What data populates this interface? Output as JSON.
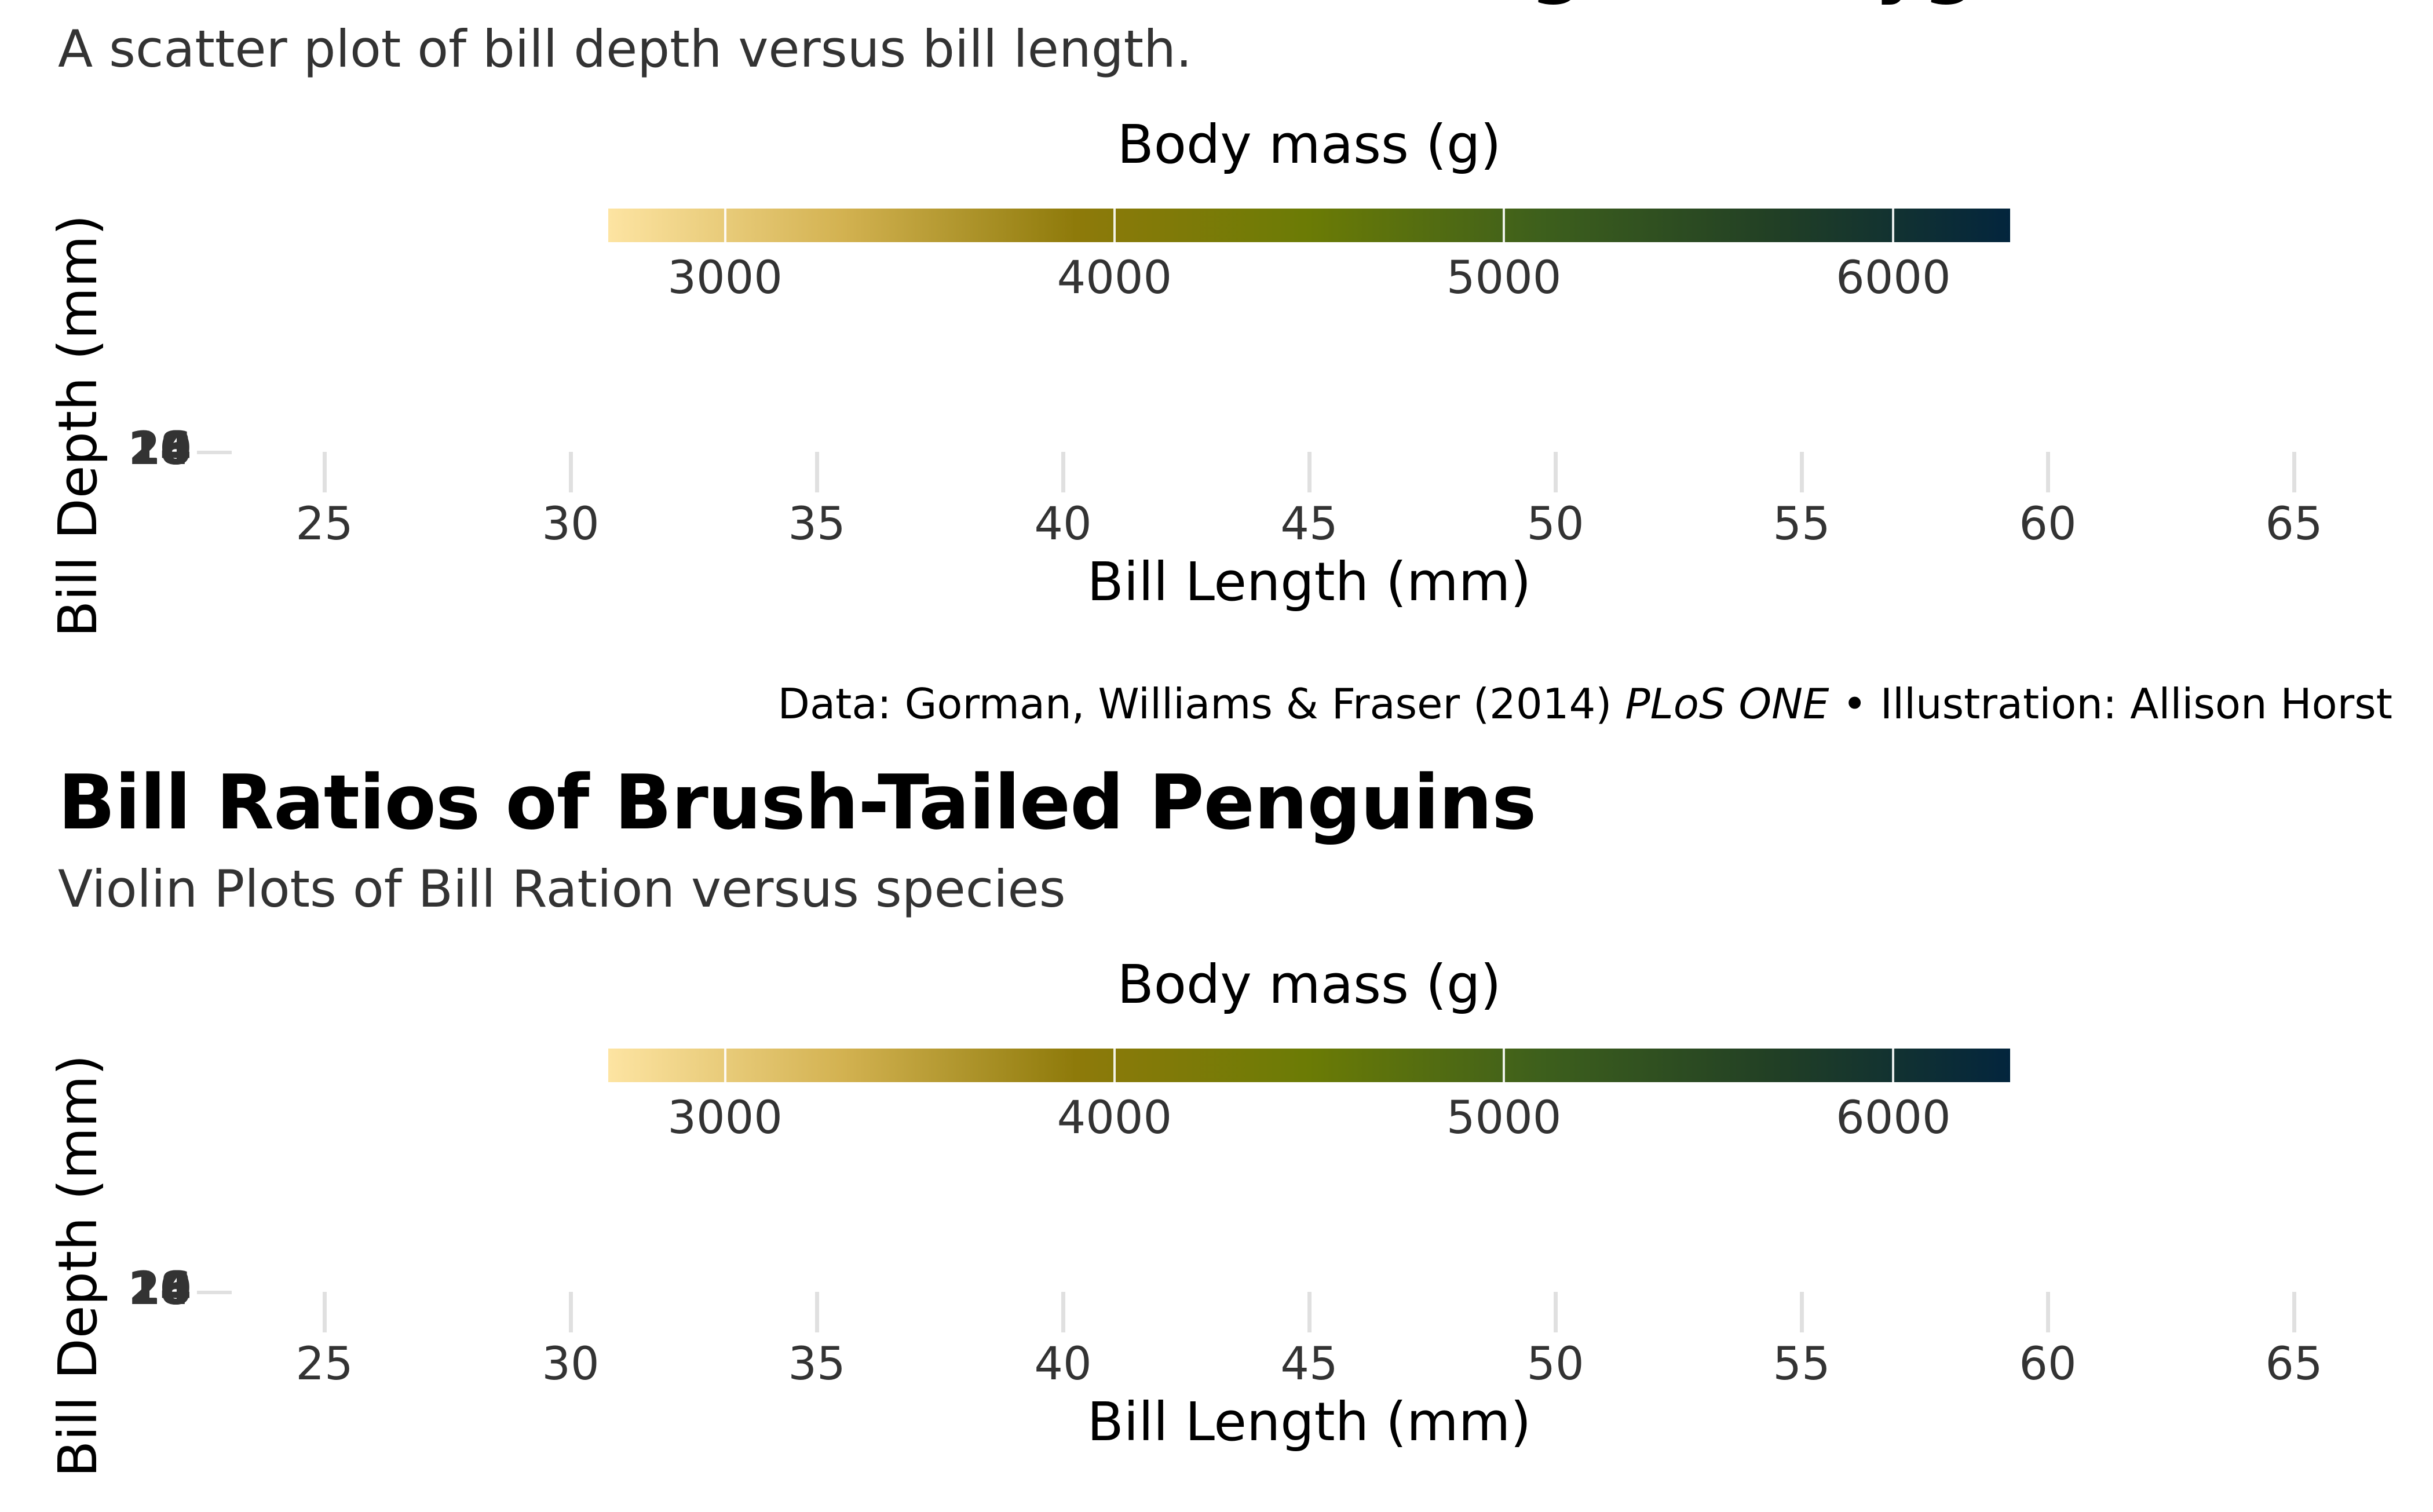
{
  "panels": [
    {
      "title": "Bill Dimensions of Brush-Tailed Penguins (Pygoscelis)",
      "subtitle": "A scatter plot of bill depth versus bill length.",
      "legend_title": "Body mass (g)",
      "caption": {
        "before": "Data: Gorman, Williams & Fraser (2014) ",
        "italic": "PLoS ONE",
        "after": " • Illustration: Allison Horst"
      }
    },
    {
      "title": "Bill Ratios of Brush-Tailed Penguins",
      "subtitle": "Violin Plots of Bill Ration versus species",
      "legend_title": "Body mass (g)"
    }
  ],
  "chart_data": [
    {
      "type": "scatter",
      "title": "Bill Dimensions of Brush-Tailed Penguins (Pygoscelis)",
      "subtitle": "A scatter plot of bill depth versus bill length.",
      "xlabel": "Bill Length (mm)",
      "ylabel": "Bill Depth (mm)",
      "x_ticks": [
        25,
        30,
        35,
        40,
        45,
        50,
        55,
        60,
        65
      ],
      "xlim": [
        25,
        65
      ],
      "y_ticks_overlapping": [
        "14",
        "16",
        "18",
        "20"
      ],
      "points": [],
      "color_scale": {
        "title": "Body mass (g)",
        "ticks": [
          3000,
          4000,
          5000,
          6000
        ],
        "range": [
          2700,
          6300
        ],
        "colors": [
          "#fde4a2",
          "#d3b251",
          "#8e7a0a",
          "#6b7b05",
          "#3d5f1c",
          "#213f25",
          "#03253d"
        ]
      },
      "grid": false
    },
    {
      "type": "scatter",
      "title": "Bill Ratios of Brush-Tailed Penguins",
      "subtitle": "Violin Plots of Bill Ration versus species",
      "xlabel": "Bill Length (mm)",
      "ylabel": "Bill Depth (mm)",
      "x_ticks": [
        25,
        30,
        35,
        40,
        45,
        50,
        55,
        60,
        65
      ],
      "xlim": [
        25,
        65
      ],
      "y_ticks_overlapping": [
        "14",
        "16",
        "18",
        "20"
      ],
      "points": [],
      "color_scale": {
        "title": "Body mass (g)",
        "ticks": [
          3000,
          4000,
          5000,
          6000
        ],
        "range": [
          2700,
          6300
        ],
        "colors": [
          "#fde4a2",
          "#d3b251",
          "#8e7a0a",
          "#6b7b05",
          "#3d5f1c",
          "#213f25",
          "#03253d"
        ]
      },
      "grid": false
    }
  ]
}
